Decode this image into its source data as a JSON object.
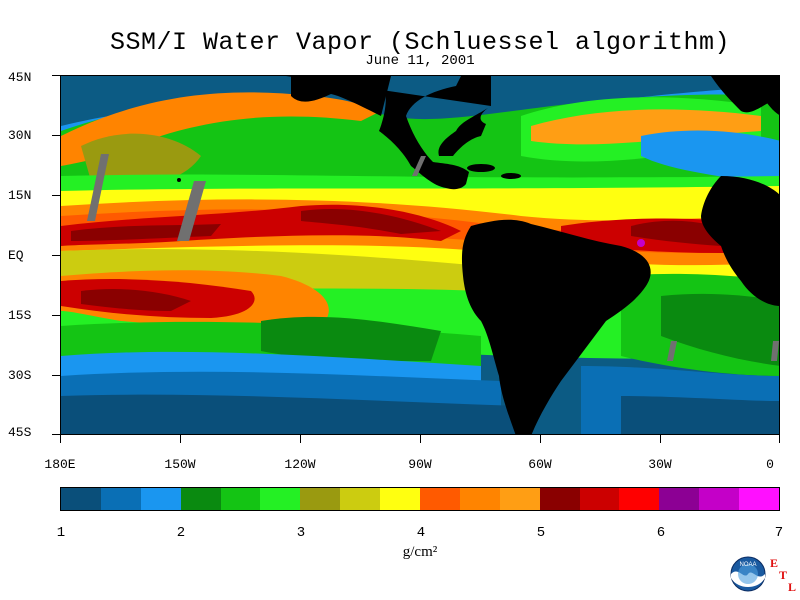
{
  "title": "SSM/I Water Vapor (Schluessel algorithm)",
  "subtitle": "June 11, 2001",
  "map": {
    "latitude_labels": [
      "45N",
      "30N",
      "15N",
      "EQ",
      "15S",
      "30S",
      "45S"
    ],
    "longitude_labels": [
      "180E",
      "150W",
      "120W",
      "90W",
      "60W",
      "30W",
      "0"
    ],
    "land_color": "#000000",
    "missing_data_color": "#707070"
  },
  "colorbar": {
    "colors": [
      "#0a4f7a",
      "#0a6fb5",
      "#1a96f0",
      "#0a8a10",
      "#14c414",
      "#24f024",
      "#9a9a10",
      "#cccc10",
      "#ffff10",
      "#ff5a00",
      "#ff8400",
      "#ff9e14",
      "#8a0000",
      "#cc0000",
      "#ff0000",
      "#8c0094",
      "#c400c8",
      "#ff10ff"
    ],
    "tick_labels": [
      "1",
      "2",
      "3",
      "4",
      "5",
      "6",
      "7"
    ],
    "units": "g/cm²"
  },
  "logo": {
    "text": "NOAA",
    "letters": [
      "E",
      "T",
      "L"
    ]
  }
}
